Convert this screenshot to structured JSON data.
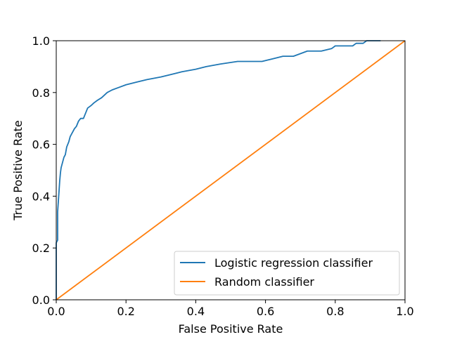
{
  "chart_data": {
    "type": "line",
    "xlabel": "False Positive Rate",
    "ylabel": "True Positive Rate",
    "xlim": [
      0.0,
      1.0
    ],
    "ylim": [
      0.0,
      1.0
    ],
    "x_ticks": [
      "0.0",
      "0.2",
      "0.4",
      "0.6",
      "0.8",
      "1.0"
    ],
    "y_ticks": [
      "0.0",
      "0.2",
      "0.4",
      "0.6",
      "0.8",
      "1.0"
    ],
    "grid": false,
    "legend_position": "lower-right",
    "colors": {
      "logistic": "#1f77b4",
      "random": "#ff7f0e"
    },
    "series": [
      {
        "name": "Logistic regression classifier",
        "color": "#1f77b4",
        "x": [
          0.0,
          0.0,
          0.004,
          0.004,
          0.006,
          0.008,
          0.01,
          0.012,
          0.014,
          0.018,
          0.022,
          0.026,
          0.03,
          0.036,
          0.04,
          0.044,
          0.048,
          0.052,
          0.058,
          0.064,
          0.07,
          0.078,
          0.09,
          0.1,
          0.108,
          0.118,
          0.13,
          0.146,
          0.16,
          0.18,
          0.2,
          0.23,
          0.26,
          0.3,
          0.33,
          0.36,
          0.4,
          0.43,
          0.47,
          0.52,
          0.56,
          0.59,
          0.62,
          0.65,
          0.68,
          0.72,
          0.76,
          0.79,
          0.8,
          0.85,
          0.86,
          0.88,
          0.89,
          0.93
        ],
        "y": [
          0.0,
          0.22,
          0.23,
          0.34,
          0.38,
          0.42,
          0.46,
          0.49,
          0.51,
          0.53,
          0.55,
          0.56,
          0.59,
          0.61,
          0.63,
          0.64,
          0.65,
          0.66,
          0.67,
          0.69,
          0.7,
          0.7,
          0.74,
          0.75,
          0.76,
          0.77,
          0.78,
          0.8,
          0.81,
          0.82,
          0.83,
          0.84,
          0.85,
          0.86,
          0.87,
          0.88,
          0.89,
          0.9,
          0.91,
          0.92,
          0.92,
          0.92,
          0.93,
          0.94,
          0.94,
          0.96,
          0.96,
          0.97,
          0.98,
          0.98,
          0.99,
          0.99,
          1.0,
          1.0
        ]
      },
      {
        "name": "Random classifier",
        "color": "#ff7f0e",
        "x": [
          0.0,
          1.0
        ],
        "y": [
          0.0,
          1.0
        ]
      }
    ]
  }
}
